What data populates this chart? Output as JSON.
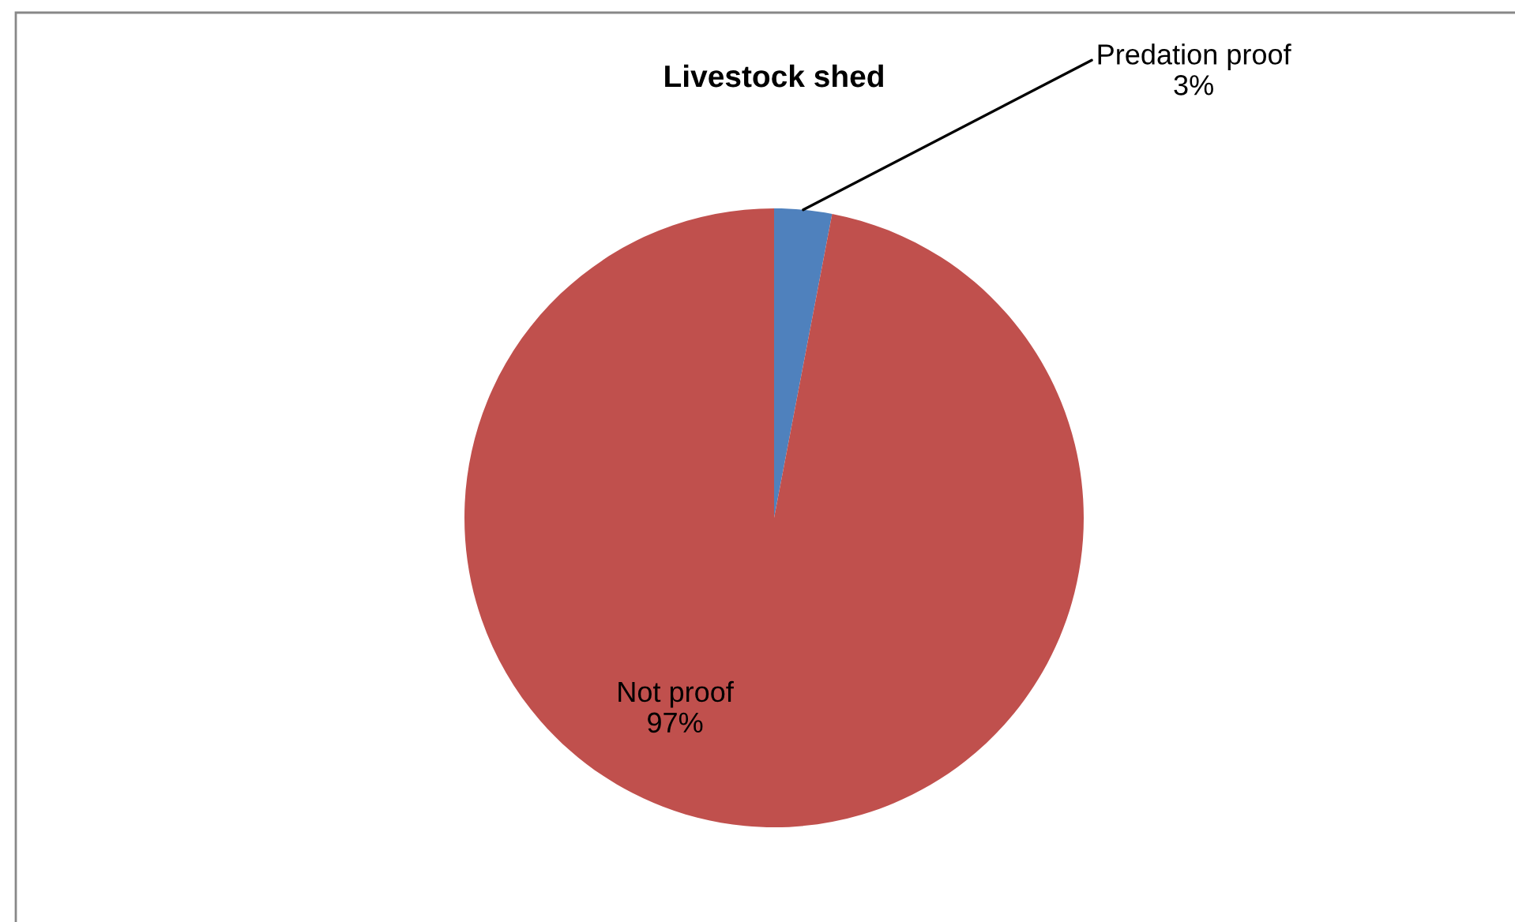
{
  "chart_data": {
    "type": "pie",
    "title": "Livestock shed",
    "categories": [
      "Predation proof",
      "Not proof"
    ],
    "values": [
      3,
      97
    ],
    "value_labels": [
      "3%",
      "97%"
    ],
    "colors": [
      "#4f81bd",
      "#c0504d"
    ],
    "legend": false
  }
}
